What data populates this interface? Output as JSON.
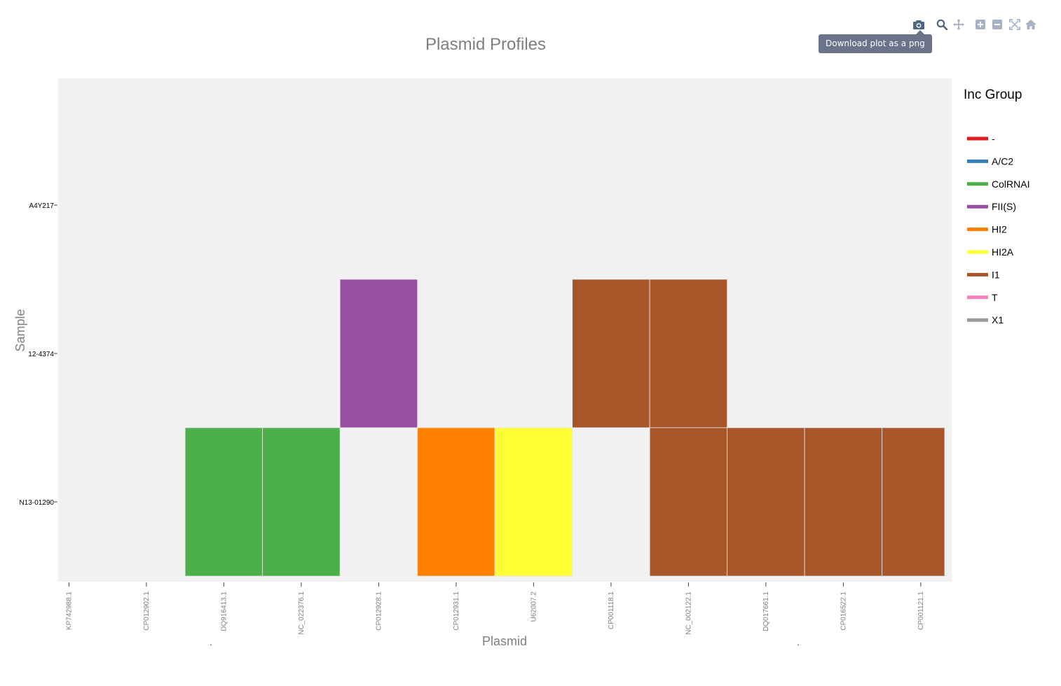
{
  "modebar": {
    "tooltip": "Download plot as a png",
    "buttons": [
      {
        "name": "camera-icon"
      },
      {
        "name": "zoom-icon"
      },
      {
        "name": "pan-icon"
      },
      {
        "name": "zoom-in-icon"
      },
      {
        "name": "zoom-out-icon"
      },
      {
        "name": "autoscale-icon"
      },
      {
        "name": "home-icon"
      }
    ]
  },
  "chart_data": {
    "type": "heatmap",
    "title": "Plasmid Profiles",
    "xlabel": "Plasmid",
    "ylabel": "Sample",
    "x": [
      "KP742988.1",
      "CP012902.1",
      "DQ916413.1",
      "NC_022376.1",
      "CP012928.1",
      "CP012931.1",
      "U62007.2",
      "CP001118.1",
      "NC_002122.1",
      "DQ017661.1",
      "CP016522.1",
      "CP001121.1"
    ],
    "y": [
      "A4Y217",
      "12-4374",
      "N13-01290"
    ],
    "cells": [
      {
        "x": "CP012928.1",
        "y": "12-4374",
        "group": "FII(S)"
      },
      {
        "x": "CP001118.1",
        "y": "12-4374",
        "group": "I1"
      },
      {
        "x": "NC_002122.1",
        "y": "12-4374",
        "group": "I1"
      },
      {
        "x": "DQ916413.1",
        "y": "N13-01290",
        "group": "ColRNAI"
      },
      {
        "x": "NC_022376.1",
        "y": "N13-01290",
        "group": "ColRNAI"
      },
      {
        "x": "CP012931.1",
        "y": "N13-01290",
        "group": "HI2"
      },
      {
        "x": "U62007.2",
        "y": "N13-01290",
        "group": "HI2A"
      },
      {
        "x": "NC_002122.1",
        "y": "N13-01290",
        "group": "I1"
      },
      {
        "x": "DQ017661.1",
        "y": "N13-01290",
        "group": "I1"
      },
      {
        "x": "CP016522.1",
        "y": "N13-01290",
        "group": "I1"
      },
      {
        "x": "CP001121.1",
        "y": "N13-01290",
        "group": "I1"
      }
    ],
    "legend": {
      "title": "Inc Group",
      "position": "right",
      "items": [
        {
          "label": "-",
          "color": "#e41a1c"
        },
        {
          "label": "A/C2",
          "color": "#377eb8"
        },
        {
          "label": "ColRNAI",
          "color": "#4daf4a"
        },
        {
          "label": "FII(S)",
          "color": "#984ea3"
        },
        {
          "label": "HI2",
          "color": "#ff7f00"
        },
        {
          "label": "HI2A",
          "color": "#ffff33"
        },
        {
          "label": "I1",
          "color": "#a65628"
        },
        {
          "label": "T",
          "color": "#f781bf"
        },
        {
          "label": "X1",
          "color": "#999999"
        }
      ]
    },
    "x_footnotes": [
      ".",
      "."
    ],
    "plot_background": "#f1f1f1"
  }
}
